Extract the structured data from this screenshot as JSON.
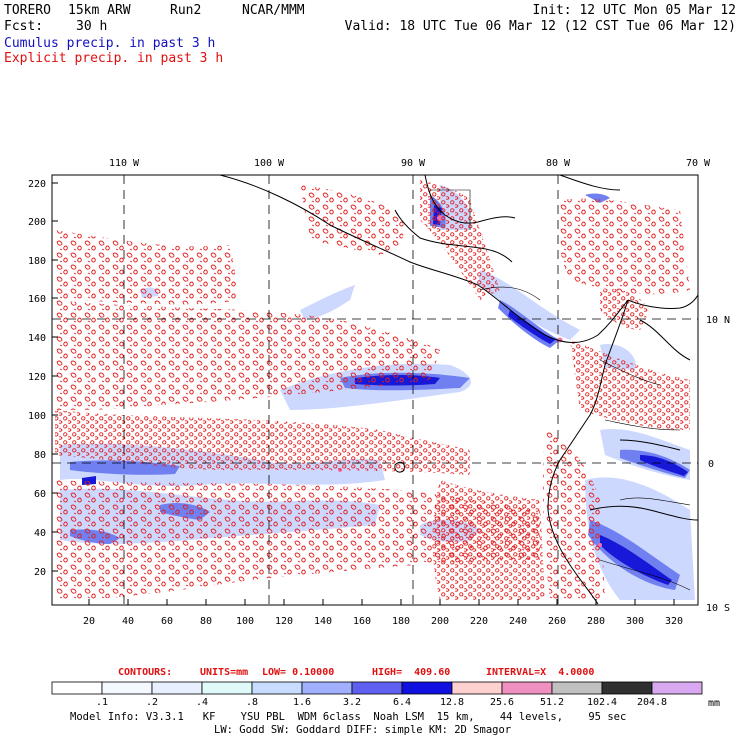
{
  "header": {
    "model": "TORERO",
    "res": "15km ARW",
    "run": "Run2",
    "org": "NCAR/MMM",
    "init": "Init: 12 UTC Mon 05 Mar 12",
    "fcst_label": "Fcst:",
    "fcst_value": "30 h",
    "valid": "Valid: 18 UTC Tue 06 Mar 12 (12 CST Tue 06 Mar 12)"
  },
  "legend": {
    "cumulus": "Cumulus precip. in past 3 h",
    "explicit": "Explicit precip. in past 3 h"
  },
  "axes": {
    "top_lon_labels": [
      "110 W",
      "100 W",
      "90 W",
      "80 W",
      "70 W"
    ],
    "right_lat_labels": [
      "10 N",
      "0",
      "10 S"
    ],
    "left_grid_labels": [
      "220",
      "200",
      "180",
      "160",
      "140",
      "120",
      "100",
      "80",
      "60",
      "40",
      "20"
    ],
    "bottom_grid_labels": [
      "20",
      "40",
      "60",
      "80",
      "100",
      "120",
      "140",
      "160",
      "180",
      "200",
      "220",
      "240",
      "260",
      "280",
      "300",
      "320"
    ]
  },
  "contour_info": {
    "contours": "CONTOURS:",
    "units": "UNITS=mm",
    "low": "LOW= 0.10000",
    "high": "HIGH=  409.60",
    "interval": "INTERVAL=X  4.0000"
  },
  "colorbar": {
    "levels": [
      ".1",
      ".2",
      ".4",
      ".8",
      "1.6",
      "3.2",
      "6.4",
      "12.8",
      "25.6",
      "51.2",
      "102.4",
      "204.8"
    ],
    "colors": [
      "#ffffff",
      "#f4f8ff",
      "#e8f0ff",
      "#e0fafa",
      "#c8dcff",
      "#a0b0ff",
      "#6060f0",
      "#1010e0",
      "#ffd0d0",
      "#f090c0",
      "#c0c0c0",
      "#303030",
      "#d8a8f0"
    ],
    "unit": "mm"
  },
  "footer": {
    "line1": "Model Info: V3.3.1   KF    YSU PBL  WDM 6class  Noah LSM  15 km,    44 levels,    95 sec",
    "line2": "LW: Godd SW: Goddard DIFF: simple KM: 2D Smagor"
  }
}
